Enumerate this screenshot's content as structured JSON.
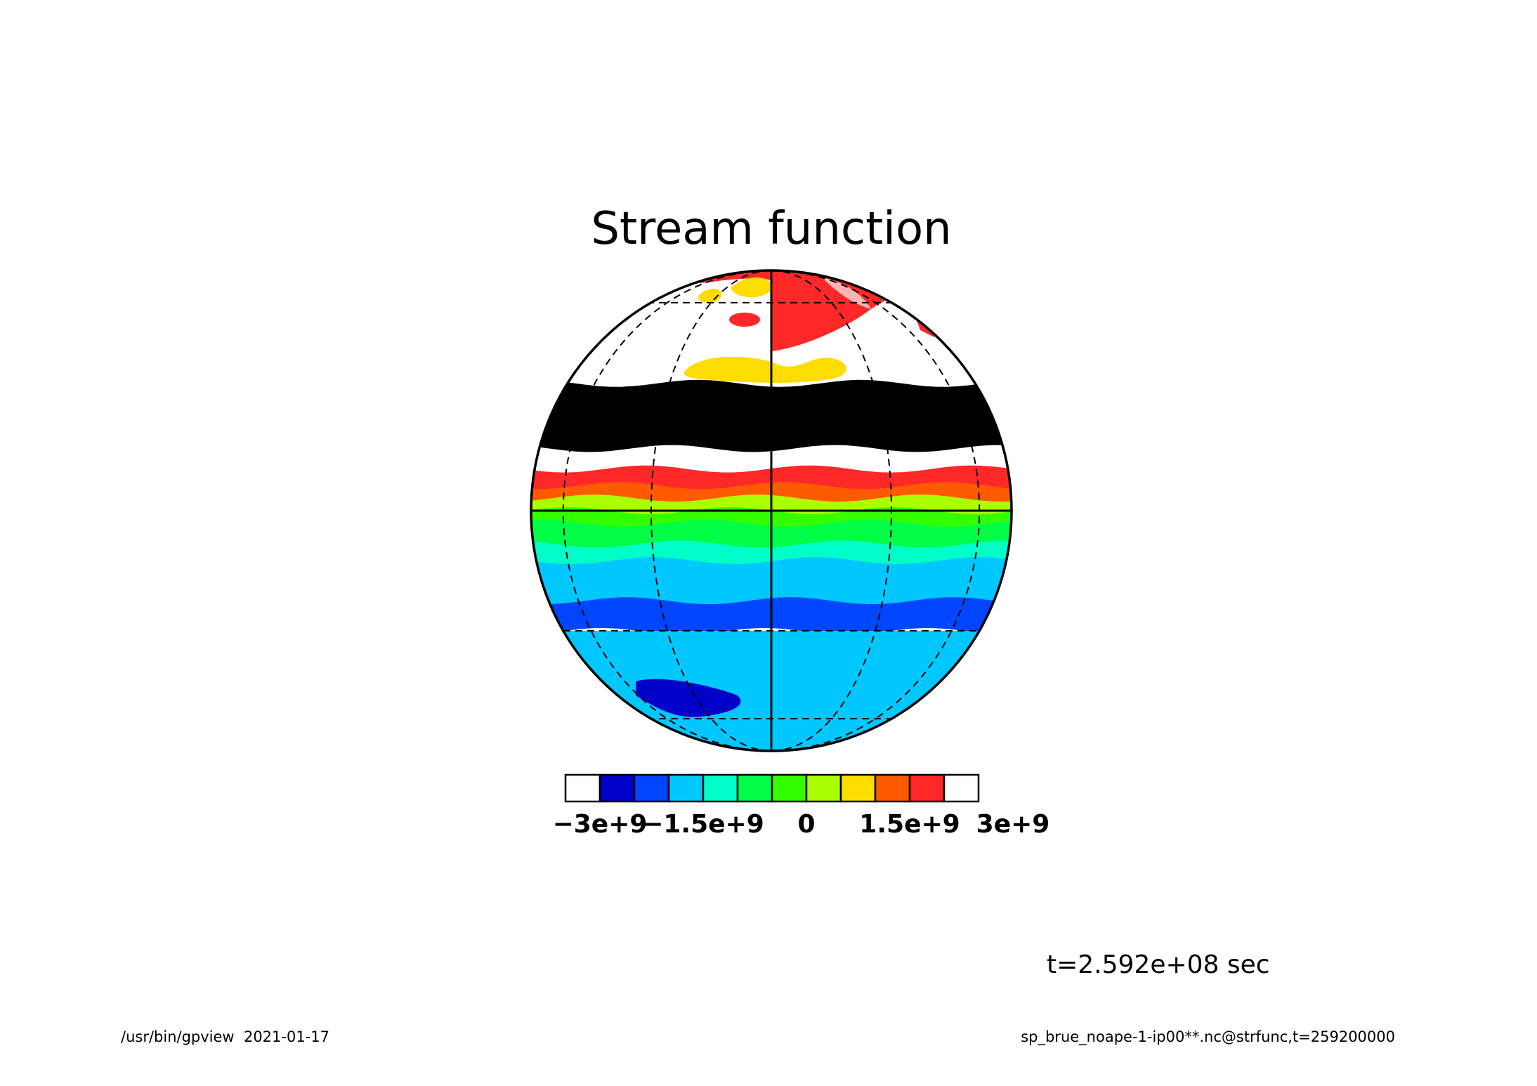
{
  "title": "Stream function",
  "time_label": "t=2.592e+08 sec",
  "footer": {
    "left": "/usr/bin/gpview  2021-01-17",
    "right": "sp_brue_noape-1-ip00**.nc@strfunc,t=259200000"
  },
  "map": {
    "projection": "orthographic",
    "variable": "strfunc",
    "graticule": {
      "style": "dashed",
      "latitudes": [
        -60,
        -30,
        30,
        60
      ],
      "longitudes": [
        -60,
        -30,
        30,
        60
      ]
    },
    "bands": [
      {
        "lat_from": 90,
        "lat_to": 72,
        "level": "1.5e9 to 2e9"
      },
      {
        "lat_from": 72,
        "lat_to": 52,
        "level": "2e9 to 2.5e9"
      },
      {
        "lat_from": 52,
        "lat_to": 32,
        "level": "2e9 to 2.5e9"
      },
      {
        "lat_from": 32,
        "lat_to": 15,
        "level": "2.5e9 to 3e9"
      },
      {
        "lat_from": 15,
        "lat_to": 10,
        "level": "2e9 to 2.5e9"
      },
      {
        "lat_from": 10,
        "lat_to": 6,
        "level": "1.5e9 to 2e9"
      },
      {
        "lat_from": 6,
        "lat_to": 3,
        "level": "1e9 to 1.5e9"
      },
      {
        "lat_from": 3,
        "lat_to": 0,
        "level": "0 to 5e8"
      },
      {
        "lat_from": 0,
        "lat_to": -3,
        "level": "-5e8 to 0"
      },
      {
        "lat_from": -3,
        "lat_to": -8,
        "level": "-1e9 to -5e8"
      },
      {
        "lat_from": -8,
        "lat_to": -12,
        "level": "-1.5e9 to -1e9"
      },
      {
        "lat_from": -12,
        "lat_to": -22,
        "level": "-2e9 to -1.5e9"
      },
      {
        "lat_from": -22,
        "lat_to": -30,
        "level": "-2.5e9 to -2e9"
      },
      {
        "lat_from": -30,
        "lat_to": -90,
        "level": "-2e9 to -1.5e9"
      }
    ]
  },
  "colorbar": {
    "colors": [
      "#ffffff",
      "#0000c8",
      "#0046ff",
      "#00c8ff",
      "#00ffc8",
      "#00ff46",
      "#32ff00",
      "#aaff00",
      "#ffdc00",
      "#ff5a00",
      "#ff2828",
      "#ffffff"
    ],
    "levels": [
      "-3e9",
      "-2.5e9",
      "-2e9",
      "-1.5e9",
      "-1e9",
      "-5e8",
      "0",
      "5e8",
      "1e9",
      "1.5e9",
      "2e9",
      "2.5e9",
      "3e9"
    ],
    "tick_labels": [
      {
        "text": "−3e+9",
        "value": -3000000000.0
      },
      {
        "text": "−1.5e+9",
        "value": -1500000000.0
      },
      {
        "text": "0",
        "value": 0
      },
      {
        "text": "1.5e+9",
        "value": 1500000000.0
      },
      {
        "text": "3e+9",
        "value": 3000000000.0
      }
    ]
  }
}
